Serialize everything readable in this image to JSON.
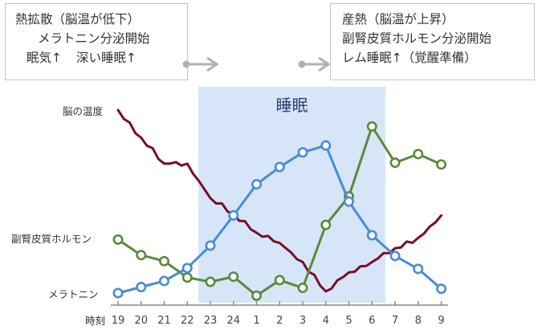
{
  "left_box": {
    "line1": "熱拡散（脳温が低下）",
    "line2": "メラトニン分泌開始",
    "line3a": "眠気↑",
    "line3b": "深い睡眠↑"
  },
  "right_box": {
    "line1": "産熱（脳温が上昇）",
    "line2": "副腎皮質ホルモン分泌開始",
    "line3": "レム睡眠↑（覚醒準備）"
  },
  "sleep_label": "睡眠",
  "row_labels": {
    "brain_temp": "脳の温度",
    "cortisol": "副腎皮質ホルモン",
    "melatonin": "メラトニン",
    "time": "時刻"
  },
  "colors": {
    "brain_temp": "#7a0c28",
    "cortisol": "#5a8a3a",
    "melatonin": "#4a8ad8",
    "sleep_band": "#d6e6f8",
    "arrow": "#b5b0ab"
  },
  "chart_data": {
    "type": "line",
    "categories": [
      "19",
      "20",
      "21",
      "22",
      "23",
      "24",
      "1",
      "2",
      "3",
      "4",
      "5",
      "6",
      "7",
      "8",
      "9"
    ],
    "sleep_span": [
      "23",
      "7"
    ],
    "series": [
      {
        "name": "メラトニン",
        "values": [
          0,
          0.35,
          0.7,
          1.45,
          2.75,
          4.5,
          6.3,
          7.3,
          8.15,
          8.55,
          5.3,
          3.35,
          2.15,
          1.4,
          0.25
        ],
        "marker": "circle"
      },
      {
        "name": "副腎皮質ホルモン",
        "values": [
          3.1,
          2.2,
          1.85,
          0.9,
          0.65,
          0.95,
          -0.15,
          0.75,
          0.3,
          3.95,
          5.6,
          9.65,
          7.55,
          8.05,
          7.45
        ],
        "marker": "circle"
      },
      {
        "name": "脳の温度",
        "values": [
          10.6,
          9.0,
          7.5,
          7.5,
          5.5,
          4.6,
          3.5,
          2.9,
          1.8,
          0.1,
          1.2,
          1.8,
          2.6,
          3.2,
          4.5
        ],
        "marker": "none"
      }
    ]
  }
}
